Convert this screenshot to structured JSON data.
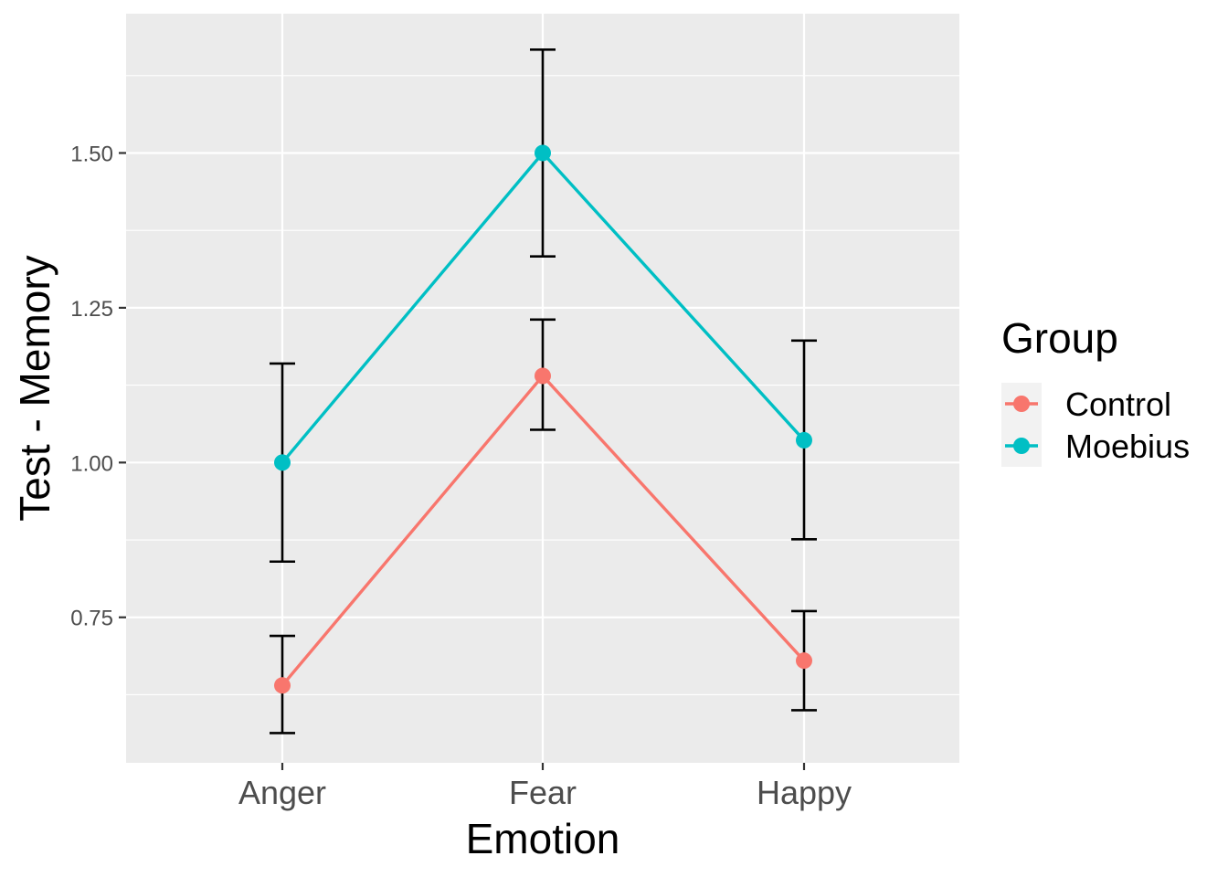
{
  "chart_data": {
    "type": "line",
    "title": "",
    "xlabel": "Emotion",
    "ylabel": "Test - Memory",
    "categories": [
      "Anger",
      "Fear",
      "Happy"
    ],
    "ylim": [
      0.515,
      1.725
    ],
    "yticks": [
      0.75,
      1.0,
      1.25,
      1.5
    ],
    "ytick_labels": [
      "0.75",
      "1.00",
      "1.25",
      "1.50"
    ],
    "grid": true,
    "legend": {
      "title": "Group",
      "placement": "right",
      "entries": [
        "Control",
        "Moebius"
      ]
    },
    "series": [
      {
        "name": "Control",
        "color": "#F8766D",
        "values": [
          0.64,
          1.14,
          0.68
        ],
        "lower": [
          0.563,
          1.053,
          0.6
        ],
        "upper": [
          0.72,
          1.231,
          0.76
        ]
      },
      {
        "name": "Moebius",
        "color": "#00BFC4",
        "values": [
          1.0,
          1.5,
          1.036
        ],
        "lower": [
          0.84,
          1.333,
          0.876
        ],
        "upper": [
          1.16,
          1.667,
          1.197
        ]
      }
    ],
    "panel_color": "#EBEBEB",
    "errorbar_color": "#000000"
  }
}
